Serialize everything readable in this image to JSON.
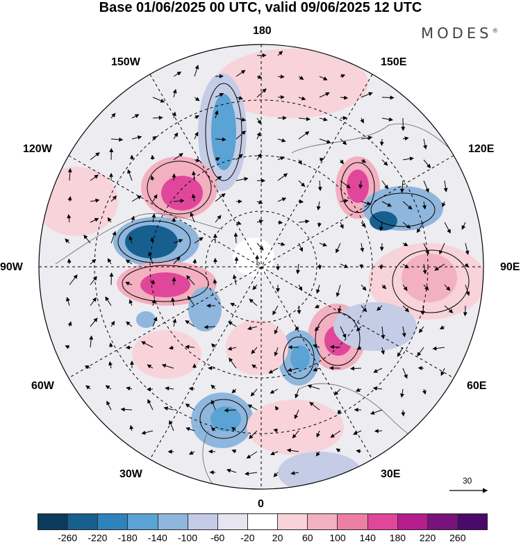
{
  "title": "Base 01/06/2025 00 UTC, valid 09/06/2025 12 UTC",
  "brand": "MODES",
  "brand_mark": "®",
  "longitude_labels": {
    "top": "180",
    "bottom": "0",
    "left": "90W",
    "right": "90E",
    "upper_left_1": "150W",
    "upper_left_2": "120W",
    "lower_left_1": "60W",
    "lower_left_2": "30W",
    "upper_right_1": "150E",
    "upper_right_2": "120E",
    "lower_right_1": "60E",
    "lower_right_2": "30E"
  },
  "reference_vector": "30",
  "colorbar": {
    "colors": [
      "#0c3a5c",
      "#175f8e",
      "#2e83bd",
      "#5aa3d4",
      "#8fb6dc",
      "#c4cce6",
      "#e7e5f2",
      "#ffffff",
      "#f8d3da",
      "#f3b0c0",
      "#ed7fa5",
      "#e0479a",
      "#b51c8c",
      "#7a127c",
      "#4a0a6a"
    ],
    "ticks": [
      "-260",
      "-220",
      "-180",
      "-140",
      "-100",
      "-60",
      "-20",
      "20",
      "60",
      "100",
      "140",
      "180",
      "220",
      "260"
    ]
  }
}
